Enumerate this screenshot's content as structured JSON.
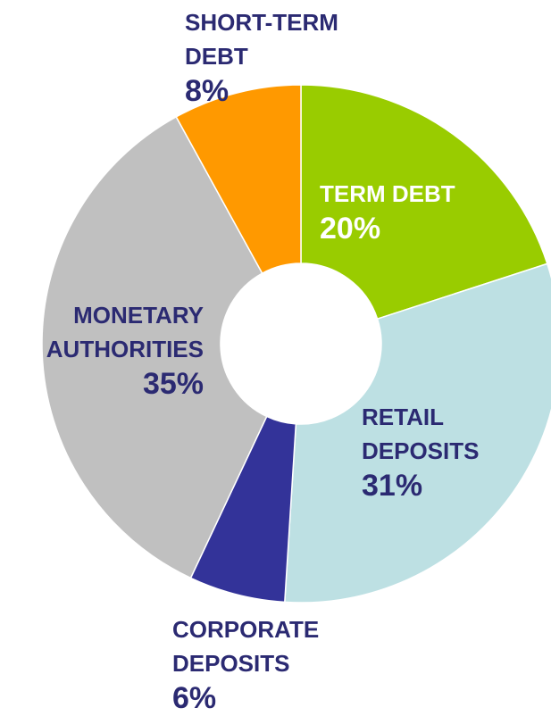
{
  "chart_data": {
    "type": "donut",
    "categories": [
      "TERM DEBT",
      "RETAIL DEPOSITS",
      "CORPORATE DEPOSITS",
      "MONETARY AUTHORITIES",
      "SHORT-TERM DEBT"
    ],
    "values": [
      20,
      31,
      6,
      35,
      8
    ],
    "value_labels": [
      "20%",
      "31%",
      "6%",
      "35%",
      "8%"
    ],
    "colors": [
      "#99cc00",
      "#bde0e3",
      "#333399",
      "#c0c0c0",
      "#ff9900"
    ]
  }
}
